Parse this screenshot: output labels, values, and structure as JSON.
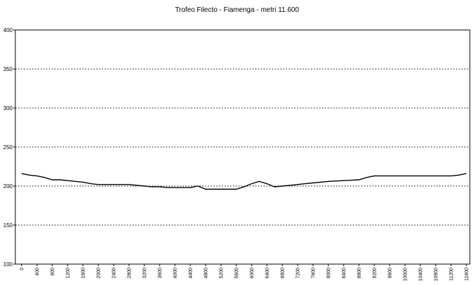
{
  "chart_data": {
    "type": "line",
    "title": "Trofeo Filecto - Fiamenga - metri 11.600",
    "xlabel": "",
    "ylabel": "",
    "ylim": [
      100,
      400
    ],
    "yticks": [
      "100",
      "150",
      "200",
      "250",
      "300",
      "350",
      "400"
    ],
    "xticks": [
      "0",
      "400",
      "800",
      "1200",
      "1600",
      "2000",
      "2400",
      "2800",
      "3200",
      "3600",
      "4000",
      "4400",
      "4800",
      "5200",
      "5600",
      "6000",
      "6400",
      "6800",
      "7200",
      "7600",
      "8000",
      "8400",
      "8800",
      "9200",
      "9600",
      "10000",
      "10400",
      "10800",
      "11200",
      "11600"
    ],
    "grid": "horizontal-dashed",
    "line_color": "#000000",
    "series": [
      {
        "x": [
          0,
          200,
          400,
          600,
          800,
          1000,
          1200,
          1400,
          1600,
          1800,
          2000,
          2400,
          2800,
          3000,
          3200,
          3400,
          3600,
          3800,
          4000,
          4200,
          4400,
          4600,
          4800,
          5200,
          5600,
          5800,
          6000,
          6200,
          6400,
          6600,
          6800,
          7000,
          7200,
          7400,
          7600,
          8000,
          8400,
          8800,
          9000,
          9200,
          9600,
          10000,
          10400,
          10800,
          11200,
          11400,
          11600
        ],
        "y": [
          216,
          214,
          213,
          211,
          208,
          208,
          207,
          206,
          205,
          203,
          202,
          202,
          202,
          201,
          200,
          199,
          199,
          198,
          198,
          198,
          198,
          200,
          196,
          196,
          196,
          199,
          203,
          206,
          203,
          199,
          200,
          201,
          202,
          203,
          204,
          206,
          207,
          208,
          211,
          213,
          213,
          213,
          213,
          213,
          213,
          214,
          216
        ]
      }
    ]
  }
}
